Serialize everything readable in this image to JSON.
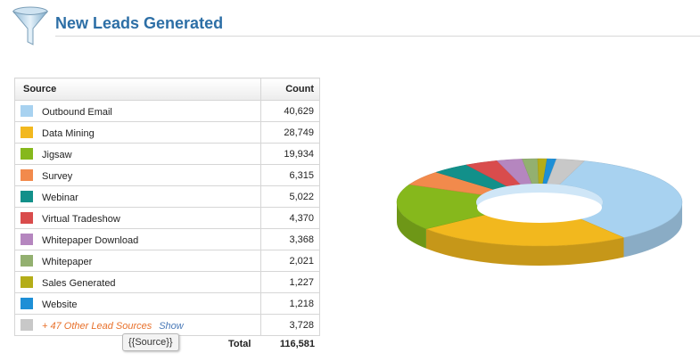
{
  "header": {
    "title": "New Leads Generated",
    "icon": "funnel-icon"
  },
  "table": {
    "col_source": "Source",
    "col_count": "Count",
    "rows": [
      {
        "label": "Outbound Email",
        "count": "40,629",
        "value": 40629,
        "color": "#a8d2f0"
      },
      {
        "label": "Data Mining",
        "count": "28,749",
        "value": 28749,
        "color": "#f2b81e"
      },
      {
        "label": "Jigsaw",
        "count": "19,934",
        "value": 19934,
        "color": "#86b81c"
      },
      {
        "label": "Survey",
        "count": "6,315",
        "value": 6315,
        "color": "#f28a4c"
      },
      {
        "label": "Webinar",
        "count": "5,022",
        "value": 5022,
        "color": "#12908a"
      },
      {
        "label": "Virtual Tradeshow",
        "count": "4,370",
        "value": 4370,
        "color": "#d94c4c"
      },
      {
        "label": "Whitepaper Download",
        "count": "3,368",
        "value": 3368,
        "color": "#b586bf"
      },
      {
        "label": "Whitepaper",
        "count": "2,021",
        "value": 2021,
        "color": "#93b070"
      },
      {
        "label": "Sales Generated",
        "count": "1,227",
        "value": 1227,
        "color": "#b4ad18"
      },
      {
        "label": "Website",
        "count": "1,218",
        "value": 1218,
        "color": "#1e8fd6"
      }
    ],
    "other": {
      "label": "+ 47 Other Lead Sources",
      "show": "Show",
      "count": "3,728",
      "value": 3728,
      "color": "#c8c8c8"
    },
    "total_label": "Total",
    "total_value": "116,581"
  },
  "tooltip": "{{Source}}"
}
